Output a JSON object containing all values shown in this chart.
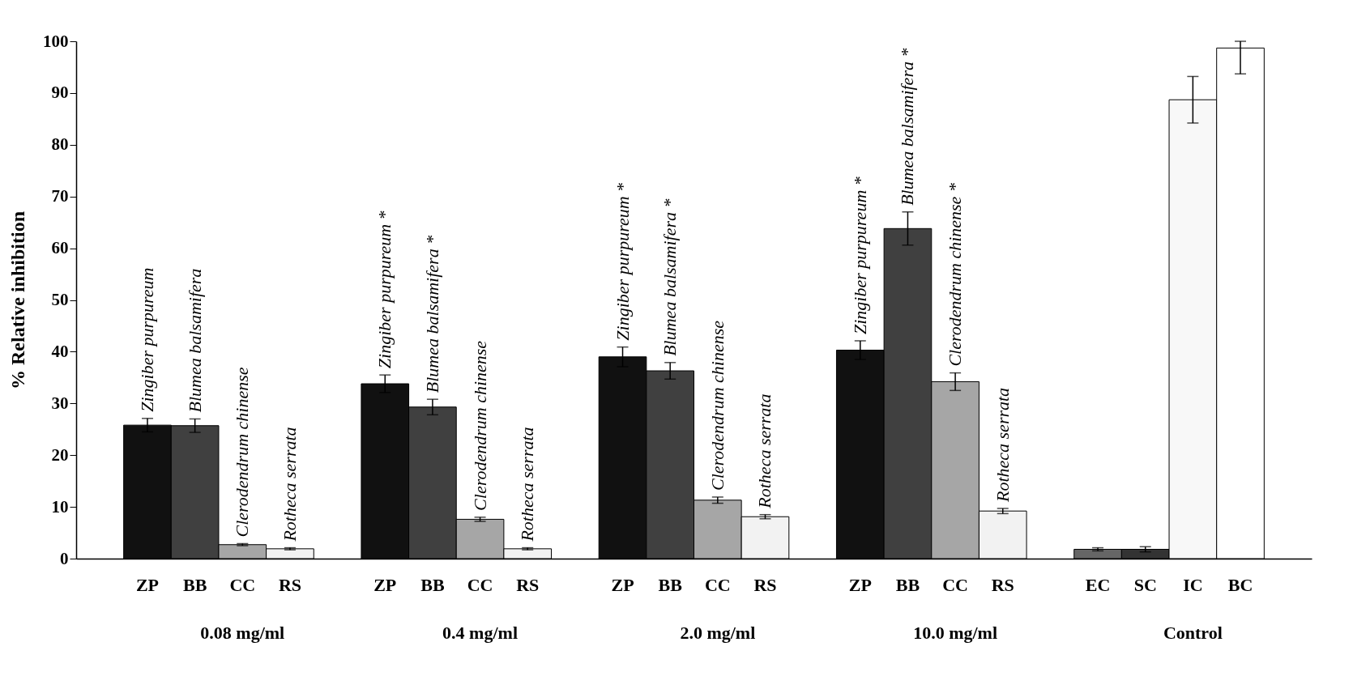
{
  "chart_data": {
    "type": "bar",
    "ylabel": "% Relative inhibition",
    "categories": [
      "ZP",
      "BB",
      "CC",
      "RS",
      "ZP",
      "BB",
      "CC",
      "RS",
      "ZP",
      "BB",
      "CC",
      "RS",
      "ZP",
      "BB",
      "CC",
      "RS",
      "EC",
      "SC",
      "IC",
      "BC"
    ],
    "values": [
      25.8,
      25.7,
      2.7,
      1.9,
      33.8,
      29.3,
      7.6,
      1.9,
      39.0,
      36.3,
      11.3,
      8.1,
      40.3,
      63.8,
      34.2,
      9.2,
      1.8,
      1.8,
      88.7,
      98.7
    ],
    "errors": [
      1.3,
      1.3,
      0.2,
      0.2,
      1.7,
      1.5,
      0.4,
      0.2,
      1.9,
      1.6,
      0.6,
      0.4,
      1.8,
      3.2,
      1.7,
      0.5,
      0.3,
      0.5,
      4.5,
      [
        93.7,
        100
      ]
    ],
    "colors": [
      "#111111",
      "#404040",
      "#a6a6a6",
      "#f2f2f2",
      "#111111",
      "#404040",
      "#a6a6a6",
      "#f2f2f2",
      "#111111",
      "#404040",
      "#a6a6a6",
      "#f2f2f2",
      "#111111",
      "#404040",
      "#a6a6a6",
      "#f2f2f2",
      "#666666",
      "#333333",
      "#f8f8f8",
      "#ffffff"
    ],
    "value_labels": [
      "Zingiber purpureum",
      "Blumea balsamifera",
      "Clerodendrum chinense",
      "Rotheca serrata",
      "Zingiber purpureum *",
      "Blumea balsamifera *",
      "Clerodendrum chinense",
      "Rotheca serrata",
      "Zingiber purpureum *",
      "Blumea balsamifera *",
      "Clerodendrum chinense",
      "Rotheca serrata",
      "Zingiber purpureum *",
      "Blumea balsamifera *",
      "Clerodendrum chinense *",
      "Rotheca serrata",
      null,
      null,
      null,
      null
    ],
    "annotations": [
      "0.08 mg/ml",
      "0.4 mg/ml",
      "2.0 mg/ml",
      "10.0 mg/ml",
      "Control"
    ],
    "ylim": [
      0,
      100
    ],
    "yticks": [
      0,
      10,
      20,
      30,
      40,
      50,
      60,
      70,
      80,
      90,
      100
    ],
    "grid": false,
    "legend": false
  }
}
